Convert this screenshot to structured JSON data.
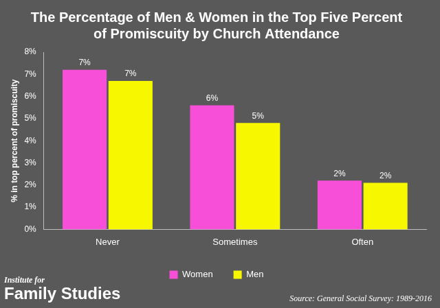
{
  "chart_data": {
    "type": "bar",
    "title": [
      "The Percentage of Men & Women in the Top Five Percent",
      "of Promiscuity by Church Attendance"
    ],
    "y_label": "% in top percent of promiscuity",
    "categories": [
      "Never",
      "Sometimes",
      "Often"
    ],
    "series": [
      {
        "name": "Women",
        "color": "#f74fd8",
        "values": [
          7.2,
          5.6,
          2.2
        ],
        "value_labels": [
          "7%",
          "6%",
          "2%"
        ]
      },
      {
        "name": "Men",
        "color": "#f7f700",
        "values": [
          6.7,
          4.8,
          2.1
        ],
        "value_labels": [
          "7%",
          "5%",
          "2%"
        ]
      }
    ],
    "ylim": [
      0,
      8
    ],
    "yticks": [
      {
        "value": 0,
        "label": "0%"
      },
      {
        "value": 1,
        "label": "1%"
      },
      {
        "value": 2,
        "label": "2%"
      },
      {
        "value": 3,
        "label": "3%"
      },
      {
        "value": 4,
        "label": "4%"
      },
      {
        "value": 5,
        "label": "5%"
      },
      {
        "value": 6,
        "label": "6%"
      },
      {
        "value": 7,
        "label": "7%"
      },
      {
        "value": 8,
        "label": "8%"
      }
    ],
    "grid": false,
    "legend": "bottom",
    "data_labels": true,
    "logo": [
      "Institute for",
      "Family Studies"
    ],
    "source": "Source: General Social Survey: 1989-2016"
  }
}
